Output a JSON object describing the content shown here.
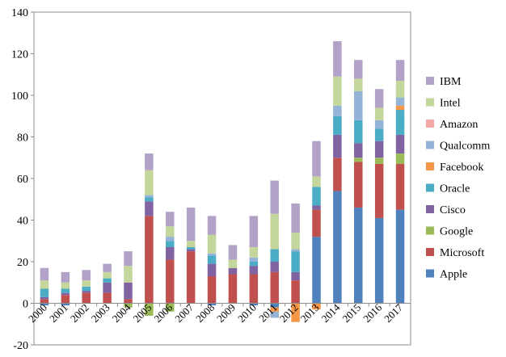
{
  "chart_data": {
    "type": "bar",
    "stacked": true,
    "title": "",
    "xlabel": "",
    "ylabel": "",
    "ylim": [
      -20,
      140
    ],
    "yticks": [
      -20,
      0,
      20,
      40,
      60,
      80,
      100,
      120,
      140
    ],
    "grid": false,
    "legend_position": "right",
    "categories": [
      "2000",
      "2001",
      "2002",
      "2003",
      "2004",
      "2005",
      "2006",
      "2007",
      "2008",
      "2009",
      "2010",
      "2011",
      "2012",
      "2013",
      "2014",
      "2015",
      "2016",
      "2017"
    ],
    "series": [
      {
        "name": "Apple",
        "color": "#4f81bd",
        "values": [
          -1,
          -1,
          0,
          0,
          0,
          0,
          0,
          0,
          -1,
          0,
          -1,
          -2,
          0,
          32,
          54,
          46,
          41,
          45
        ]
      },
      {
        "name": "Microsoft",
        "color": "#c0504d",
        "values": [
          2,
          4,
          5,
          5,
          2,
          42,
          21,
          25,
          13,
          14,
          14,
          15,
          11,
          13,
          16,
          22,
          26,
          22
        ]
      },
      {
        "name": "Google",
        "color": "#9bbb59",
        "values": [
          0,
          0,
          0,
          0,
          -2,
          -6,
          -4,
          0,
          0,
          0,
          0,
          0,
          0,
          0,
          0,
          2,
          3,
          5
        ]
      },
      {
        "name": "Cisco",
        "color": "#8064a2",
        "values": [
          1,
          1,
          1,
          5,
          8,
          7,
          6,
          1,
          6,
          3,
          4,
          5,
          4,
          2,
          11,
          7,
          8,
          9
        ]
      },
      {
        "name": "Oracle",
        "color": "#4bacc6",
        "values": [
          4,
          2,
          2,
          2,
          0,
          2,
          3,
          1,
          4,
          0,
          2,
          6,
          10,
          9,
          9,
          11,
          6,
          12
        ]
      },
      {
        "name": "Facebook",
        "color": "#f79646",
        "values": [
          0,
          0,
          0,
          0,
          0,
          0,
          0,
          0,
          0,
          0,
          0,
          -2,
          -9,
          -3,
          0,
          0,
          0,
          2
        ]
      },
      {
        "name": "Qualcomm",
        "color": "#95b3d7",
        "values": [
          0,
          0,
          0,
          0,
          0,
          1,
          2,
          0,
          1,
          0,
          2,
          -3,
          1,
          0,
          5,
          14,
          4,
          4
        ]
      },
      {
        "name": "Amazon",
        "color": "#f2a7a5",
        "values": [
          0,
          0,
          0,
          0,
          0,
          0,
          0,
          0,
          0,
          0,
          0,
          0,
          0,
          0,
          0,
          0,
          0,
          0
        ]
      },
      {
        "name": "Intel",
        "color": "#c3d69b",
        "values": [
          4,
          3,
          3,
          3,
          8,
          12,
          5,
          3,
          9,
          4,
          5,
          17,
          8,
          5,
          14,
          6,
          6,
          8
        ]
      },
      {
        "name": "IBM",
        "color": "#b2a2c7",
        "values": [
          6,
          5,
          5,
          4,
          7,
          8,
          7,
          16,
          9,
          7,
          15,
          16,
          14,
          17,
          17,
          9,
          9,
          10
        ]
      }
    ]
  }
}
